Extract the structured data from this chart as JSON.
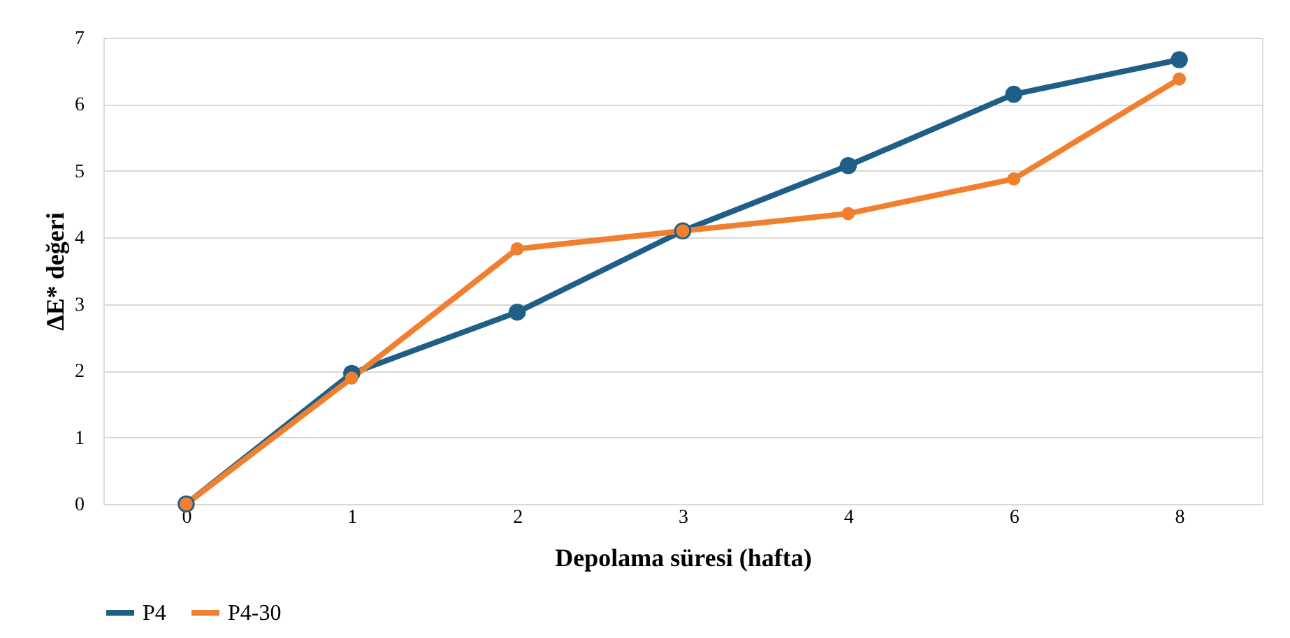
{
  "chart_data": {
    "type": "line",
    "xlabel": "Depolama süresi (hafta)",
    "ylabel": "ΔE* değeri",
    "categories": [
      "0",
      "1",
      "2",
      "3",
      "4",
      "6",
      "8"
    ],
    "series": [
      {
        "name": "P4",
        "color": "#1f5f87",
        "values": [
          0,
          1.96,
          2.88,
          4.1,
          5.08,
          6.15,
          6.67
        ]
      },
      {
        "name": "P4-30",
        "color": "#f08030",
        "values": [
          0,
          1.89,
          3.83,
          4.1,
          4.36,
          4.88,
          6.38
        ]
      }
    ],
    "ylim": [
      0,
      7
    ],
    "yticks": [
      0,
      1,
      2,
      3,
      4,
      5,
      6,
      7
    ],
    "grid": "y",
    "legend": "bottom",
    "marker": "circle",
    "line_style": "solid"
  }
}
